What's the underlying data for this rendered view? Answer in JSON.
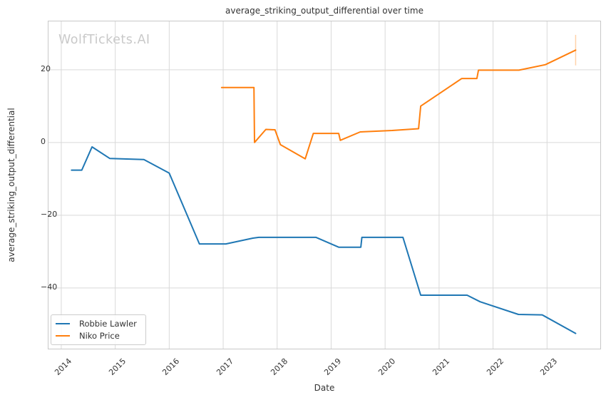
{
  "watermark": "WolfTickets.AI",
  "colors": {
    "grid": "#d9d9d9",
    "spine": "#c8c8c8",
    "text": "#333333",
    "watermark": "#c9c9c9",
    "series_blue": "#1f77b4",
    "series_orange": "#ff7f0e",
    "background": "#ffffff"
  },
  "chart_data": {
    "type": "line",
    "title": "average_striking_output_differential over time",
    "xlabel": "Date",
    "ylabel": "average_striking_output_differential",
    "xlim": [
      2013.75,
      2024.0
    ],
    "ylim": [
      -56.9,
      33.5
    ],
    "xticks": [
      2014,
      2015,
      2016,
      2017,
      2018,
      2019,
      2020,
      2021,
      2022,
      2023
    ],
    "xtick_labels": [
      "2014",
      "2015",
      "2016",
      "2017",
      "2018",
      "2019",
      "2020",
      "2021",
      "2022",
      "2023"
    ],
    "yticks": [
      20,
      0,
      -20,
      -40
    ],
    "ytick_labels": [
      "20",
      "0",
      "−20",
      "−40"
    ],
    "grid": true,
    "legend_position": "lower left",
    "series": [
      {
        "name": "Robbie Lawler",
        "color": "#1f77b4",
        "points": [
          [
            2014.19,
            -7.6
          ],
          [
            2014.38,
            -7.6
          ],
          [
            2014.57,
            -1.2
          ],
          [
            2014.9,
            -4.4
          ],
          [
            2015.53,
            -4.7
          ],
          [
            2016.0,
            -8.4
          ],
          [
            2016.56,
            -27.9
          ],
          [
            2017.05,
            -27.9
          ],
          [
            2017.55,
            -26.3
          ],
          [
            2017.66,
            -26.1
          ],
          [
            2018.72,
            -26.1
          ],
          [
            2019.14,
            -28.8
          ],
          [
            2019.55,
            -28.8
          ],
          [
            2019.57,
            -26.1
          ],
          [
            2020.33,
            -26.1
          ],
          [
            2020.66,
            -42.0
          ],
          [
            2021.52,
            -42.0
          ],
          [
            2021.76,
            -43.8
          ],
          [
            2022.47,
            -47.3
          ],
          [
            2022.91,
            -47.4
          ],
          [
            2023.53,
            -52.5
          ]
        ]
      },
      {
        "name": "Niko Price",
        "color": "#ff7f0e",
        "points": [
          [
            2016.97,
            15.1
          ],
          [
            2017.57,
            15.1
          ],
          [
            2017.58,
            0.0
          ],
          [
            2017.79,
            3.6
          ],
          [
            2017.96,
            3.5
          ],
          [
            2018.06,
            -0.6
          ],
          [
            2018.52,
            -4.5
          ],
          [
            2018.67,
            2.5
          ],
          [
            2019.14,
            2.5
          ],
          [
            2019.17,
            0.6
          ],
          [
            2019.54,
            2.9
          ],
          [
            2020.13,
            3.3
          ],
          [
            2020.62,
            3.8
          ],
          [
            2020.66,
            10.0
          ],
          [
            2021.42,
            17.6
          ],
          [
            2021.7,
            17.6
          ],
          [
            2021.73,
            19.9
          ],
          [
            2022.48,
            19.9
          ],
          [
            2022.97,
            21.4
          ],
          [
            2023.53,
            25.4
          ]
        ]
      }
    ],
    "end_marker": {
      "x": 2023.53,
      "y_from": 21.2,
      "y_to": 29.6,
      "color": "#ff7f0e",
      "opacity": 0.35
    }
  }
}
